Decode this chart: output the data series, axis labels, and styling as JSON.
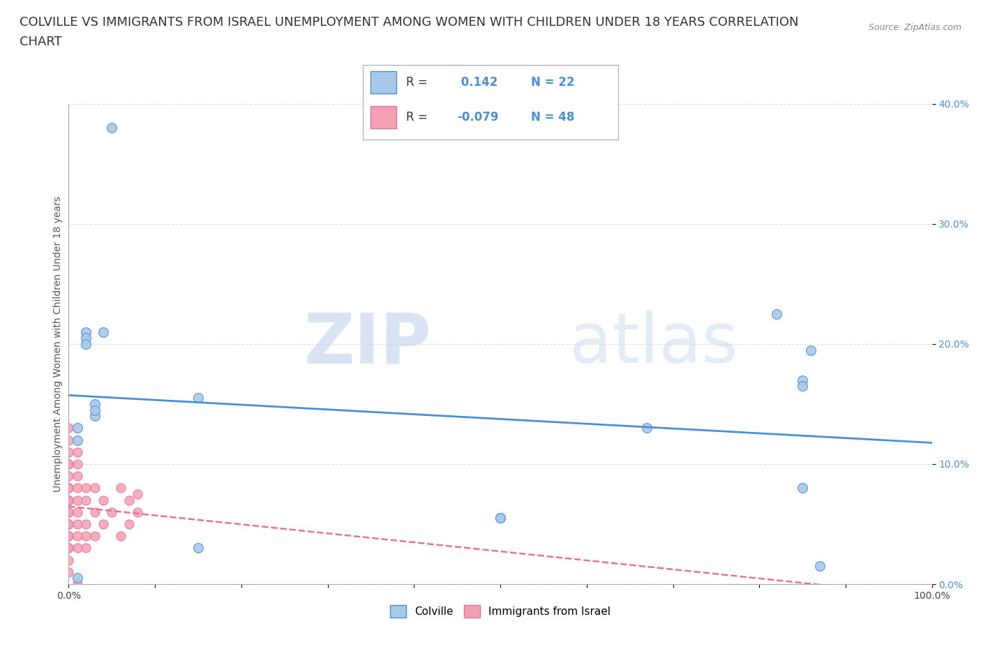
{
  "title_line1": "COLVILLE VS IMMIGRANTS FROM ISRAEL UNEMPLOYMENT AMONG WOMEN WITH CHILDREN UNDER 18 YEARS CORRELATION",
  "title_line2": "CHART",
  "source_text": "Source: ZipAtlas.com",
  "ylabel": "Unemployment Among Women with Children Under 18 years",
  "xlim": [
    0,
    100
  ],
  "ylim": [
    0,
    40
  ],
  "xticks": [
    0,
    10,
    20,
    30,
    40,
    50,
    60,
    70,
    80,
    90,
    100
  ],
  "yticks": [
    0,
    10,
    20,
    30,
    40
  ],
  "ytick_labels": [
    "0.0%",
    "10.0%",
    "20.0%",
    "30.0%",
    "40.0%"
  ],
  "xtick_labels": [
    "0.0%",
    "",
    "",
    "",
    "",
    "",
    "",
    "",
    "",
    "",
    "100.0%"
  ],
  "colville_color": "#a8c8e8",
  "israel_color": "#f4a0b4",
  "colville_line_color": "#4a90d9",
  "israel_line_color": "#e87090",
  "colville_R": 0.142,
  "colville_N": 22,
  "israel_R": -0.079,
  "israel_N": 48,
  "legend_label_colville": "Colville",
  "legend_label_israel": "Immigrants from Israel",
  "watermark_zip": "ZIP",
  "watermark_atlas": "atlas",
  "colville_x": [
    1,
    2,
    2,
    3,
    3,
    3,
    4,
    5,
    1,
    2,
    15,
    15,
    50,
    50,
    67,
    82,
    85,
    85,
    85,
    86,
    87,
    1
  ],
  "colville_y": [
    13,
    21,
    20.5,
    14,
    15,
    14.5,
    21,
    38,
    12,
    20,
    15.5,
    3,
    5.5,
    5.5,
    13,
    22.5,
    17,
    16.5,
    8,
    19.5,
    1.5,
    0.5
  ],
  "israel_x": [
    0,
    0,
    0,
    0,
    0,
    0,
    0,
    0,
    0,
    0,
    0,
    0,
    0,
    0,
    0,
    0,
    0,
    0,
    0,
    0,
    0,
    1,
    1,
    1,
    1,
    1,
    1,
    1,
    1,
    1,
    1,
    2,
    2,
    2,
    2,
    2,
    3,
    3,
    3,
    4,
    4,
    5,
    6,
    6,
    7,
    7,
    8,
    8
  ],
  "israel_y": [
    1,
    2,
    3,
    3,
    4,
    4,
    5,
    5,
    6,
    6,
    7,
    7,
    7,
    8,
    8,
    9,
    10,
    10,
    11,
    12,
    13,
    0,
    3,
    4,
    5,
    6,
    7,
    8,
    9,
    10,
    11,
    3,
    4,
    5,
    7,
    8,
    4,
    6,
    8,
    5,
    7,
    6,
    4,
    8,
    5,
    7,
    6,
    7.5
  ],
  "background_color": "#ffffff",
  "grid_color": "#dddddd",
  "title_fontsize": 13,
  "axis_label_fontsize": 10,
  "tick_fontsize": 10,
  "legend_fontsize": 12
}
